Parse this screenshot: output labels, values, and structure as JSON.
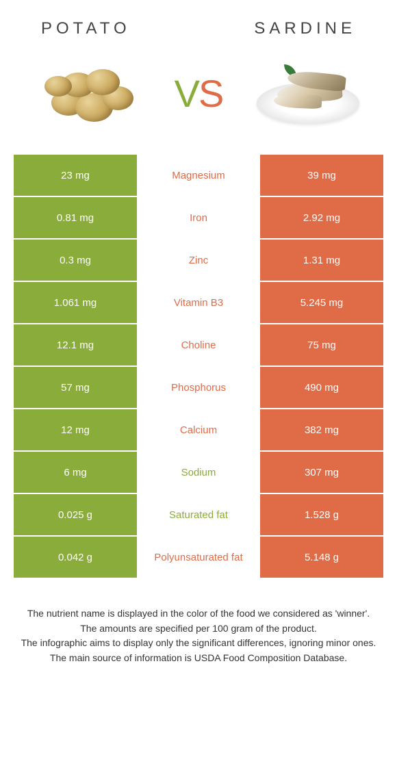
{
  "colors": {
    "left_bg": "#8aac3a",
    "right_bg": "#e06b47",
    "left_text": "#8aac3a",
    "right_text": "#e06b47",
    "cell_text": "#ffffff"
  },
  "header": {
    "left_title": "Potato",
    "right_title": "Sardine"
  },
  "vs": {
    "v": "V",
    "s": "S"
  },
  "rows": [
    {
      "left": "23 mg",
      "label": "Magnesium",
      "right": "39 mg",
      "winner": "right"
    },
    {
      "left": "0.81 mg",
      "label": "Iron",
      "right": "2.92 mg",
      "winner": "right"
    },
    {
      "left": "0.3 mg",
      "label": "Zinc",
      "right": "1.31 mg",
      "winner": "right"
    },
    {
      "left": "1.061 mg",
      "label": "Vitamin B3",
      "right": "5.245 mg",
      "winner": "right"
    },
    {
      "left": "12.1 mg",
      "label": "Choline",
      "right": "75 mg",
      "winner": "right"
    },
    {
      "left": "57 mg",
      "label": "Phosphorus",
      "right": "490 mg",
      "winner": "right"
    },
    {
      "left": "12 mg",
      "label": "Calcium",
      "right": "382 mg",
      "winner": "right"
    },
    {
      "left": "6 mg",
      "label": "Sodium",
      "right": "307 mg",
      "winner": "left"
    },
    {
      "left": "0.025 g",
      "label": "Saturated fat",
      "right": "1.528 g",
      "winner": "left"
    },
    {
      "left": "0.042 g",
      "label": "Polyunsaturated fat",
      "right": "5.148 g",
      "winner": "right"
    }
  ],
  "footer": {
    "line1": "The nutrient name is displayed in the color of the food we considered as 'winner'.",
    "line2": "The amounts are specified per 100 gram of the product.",
    "line3": "The infographic aims to display only the significant differences, ignoring minor ones.",
    "line4": "The main source of information is USDA Food Composition Database."
  }
}
